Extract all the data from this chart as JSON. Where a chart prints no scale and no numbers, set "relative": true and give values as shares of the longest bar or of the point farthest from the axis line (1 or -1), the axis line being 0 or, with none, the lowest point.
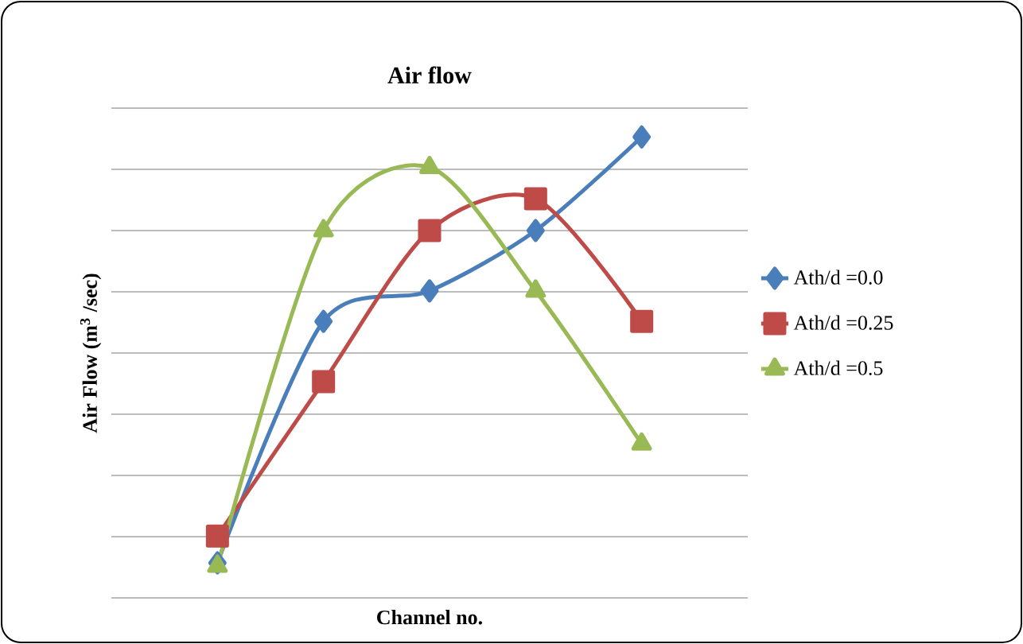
{
  "chart_data": {
    "type": "line",
    "title": "Air flow",
    "xlabel": "Channel no.",
    "ylabel": "Air Flow (m$^{3}$ /sec)",
    "relative": true,
    "grid": "y",
    "legend": "right",
    "categories": [
      null,
      null,
      null,
      null,
      null
    ],
    "series": [
      {
        "name": "Ath/d =0.0",
        "color": "#4a7ebb",
        "marker": "diamond",
        "values": [
          0.076,
          0.6,
          0.666,
          0.797,
          1
        ]
      },
      {
        "name": "Ath/d =0.25",
        "color": "#be4b48",
        "marker": "square",
        "values": [
          0.134,
          0.469,
          0.797,
          0.866,
          0.6
        ]
      },
      {
        "name": "Ath/d =0.5",
        "color": "#98b954",
        "marker": "triangle",
        "values": [
          0.069,
          0.797,
          0.934,
          0.666,
          0.334
        ]
      }
    ]
  }
}
